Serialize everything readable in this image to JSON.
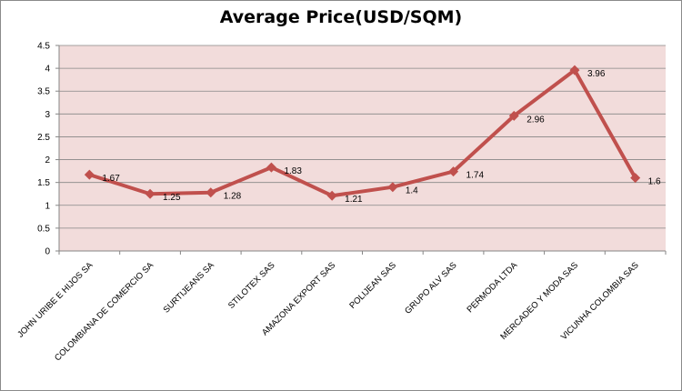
{
  "chart_data": {
    "type": "line",
    "title": "Average Price(USD/SQM)",
    "xlabel": "",
    "ylabel": "",
    "ylim": [
      0,
      4.5
    ],
    "yticks": [
      0,
      0.5,
      1,
      1.5,
      2,
      2.5,
      3,
      3.5,
      4,
      4.5
    ],
    "ytick_labels": [
      "0",
      "0.5",
      "1",
      "1.5",
      "2",
      "2.5",
      "3",
      "3.5",
      "4",
      "4.5"
    ],
    "grid": true,
    "legend": "none",
    "categories": [
      "JOHN URIBE E HIJOS SA",
      "COLOMBIANA DE COMERCIO SA",
      "SURTIJEANS SA",
      "STILOTEX SAS",
      "AMAZONA EXPORT SAS",
      "POLIJEAN SAS",
      "GRUPO ALV SAS",
      "PERMODA LTDA",
      "MERCADEO Y MODA SAS",
      "VICUNHA COLOMBIA SAS"
    ],
    "series": [
      {
        "values": [
          1.67,
          1.25,
          1.28,
          1.83,
          1.21,
          1.4,
          1.74,
          2.96,
          3.96,
          1.6
        ],
        "labels": [
          "1.67",
          "1.25",
          "1.28",
          "1.83",
          "1.21",
          "1.4",
          "1.74",
          "2.96",
          "3.96",
          "1.6"
        ]
      }
    ],
    "colors": {
      "line": "#c0504d",
      "plot_bg": "#f2dcdb",
      "grid": "#868686",
      "axis": "#868686"
    }
  }
}
